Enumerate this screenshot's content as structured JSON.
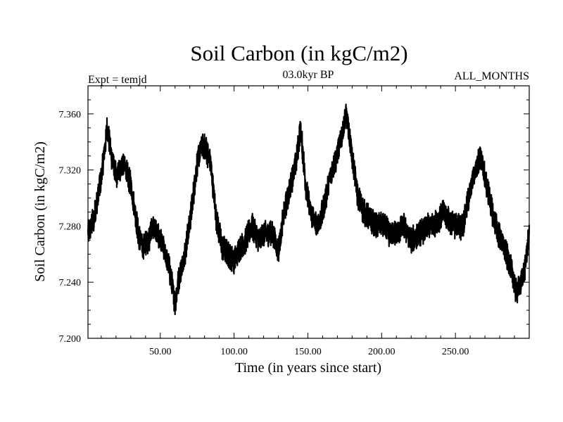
{
  "chart_data": {
    "type": "line",
    "title": "Soil Carbon (in kgC/m2)",
    "subtitle": "03.0kyr BP",
    "top_left_label": "Expt = temjd",
    "top_right_label": "ALL_MONTHS",
    "xlabel": "Time (in years since start)",
    "ylabel": "Soil Carbon (in kgC/m2)",
    "xlim": [
      1,
      300
    ],
    "ylim": [
      7.2,
      7.38
    ],
    "x_ticks": [
      "50.00",
      "100.00",
      "150.00",
      "200.00",
      "250.00"
    ],
    "y_ticks": [
      "7.200",
      "7.240",
      "7.280",
      "7.320",
      "7.360"
    ],
    "grid": false,
    "series": [
      {
        "color": "#000000",
        "x": [
          1,
          5,
          10,
          14,
          17,
          20,
          25,
          30,
          33,
          35,
          38,
          42,
          45,
          50,
          53,
          56,
          60,
          63,
          67,
          71,
          75,
          78,
          81,
          84,
          88,
          92,
          96,
          100,
          104,
          108,
          112,
          117,
          121,
          126,
          130,
          134,
          138,
          142,
          145,
          149,
          152,
          156,
          160,
          165,
          169,
          173,
          176,
          180,
          184,
          188,
          192,
          196,
          200,
          205,
          210,
          215,
          220,
          226,
          232,
          237,
          242,
          247,
          251,
          255,
          259,
          263,
          267,
          271,
          275,
          279,
          283,
          286,
          289,
          291,
          294,
          297,
          300
        ],
        "y": [
          7.275,
          7.285,
          7.315,
          7.35,
          7.33,
          7.315,
          7.325,
          7.31,
          7.29,
          7.275,
          7.265,
          7.27,
          7.28,
          7.27,
          7.262,
          7.25,
          7.225,
          7.245,
          7.262,
          7.29,
          7.325,
          7.338,
          7.335,
          7.325,
          7.285,
          7.265,
          7.26,
          7.255,
          7.265,
          7.27,
          7.28,
          7.27,
          7.275,
          7.275,
          7.262,
          7.29,
          7.308,
          7.325,
          7.35,
          7.305,
          7.29,
          7.28,
          7.29,
          7.315,
          7.328,
          7.345,
          7.36,
          7.33,
          7.3,
          7.29,
          7.285,
          7.28,
          7.282,
          7.275,
          7.275,
          7.28,
          7.27,
          7.275,
          7.28,
          7.282,
          7.29,
          7.282,
          7.28,
          7.28,
          7.3,
          7.318,
          7.33,
          7.31,
          7.29,
          7.275,
          7.265,
          7.255,
          7.245,
          7.233,
          7.238,
          7.25,
          7.275
        ]
      }
    ]
  }
}
